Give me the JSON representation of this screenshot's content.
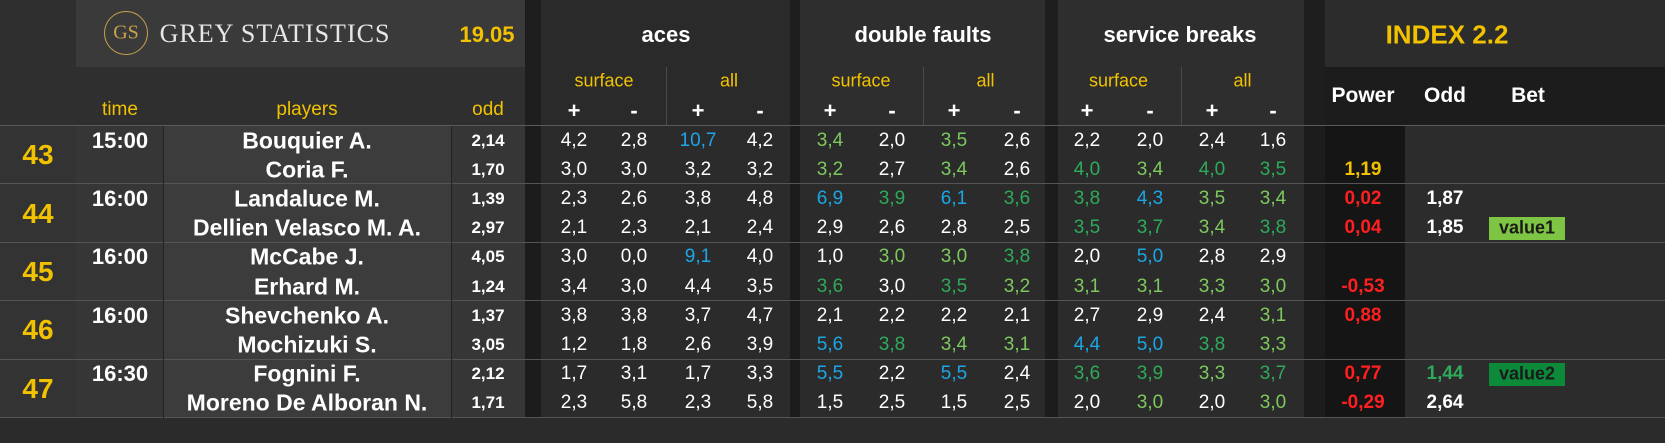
{
  "brand": {
    "logo_text": "GS",
    "title": "GREY STATISTICS",
    "date": "19.05"
  },
  "groups": {
    "aces": "aces",
    "double_faults": "double faults",
    "service_breaks": "service breaks",
    "index": "INDEX 2.2"
  },
  "sub": {
    "surface": "surface",
    "all": "all",
    "plus": "+",
    "minus": "-"
  },
  "cols": {
    "time": "time",
    "players": "players",
    "odd": "odd",
    "power": "Power",
    "odd2": "Odd",
    "bet": "Bet"
  },
  "colors": {
    "yellow": "#f2c200",
    "white": "#ffffff",
    "green": "#7dc95e",
    "dgreen": "#2eaa5a",
    "blue": "#1da6e6",
    "red": "#ff1f1f",
    "value1_bg": "#7dc542",
    "value2_bg": "#0c8a3a"
  },
  "matches": [
    {
      "num": "43",
      "time": "15:00",
      "players": [
        {
          "name": "Bouquier A.",
          "odd": "2,14",
          "stats": [
            [
              "4,2",
              "w"
            ],
            [
              "2,8",
              "w"
            ],
            [
              "10,7",
              "b"
            ],
            [
              "4,2",
              "w"
            ],
            [
              "3,4",
              "g"
            ],
            [
              "2,0",
              "w"
            ],
            [
              "3,5",
              "g"
            ],
            [
              "2,6",
              "w"
            ],
            [
              "2,2",
              "w"
            ],
            [
              "2,0",
              "w"
            ],
            [
              "2,4",
              "w"
            ],
            [
              "1,6",
              "w"
            ]
          ],
          "power": "",
          "power_color": "",
          "odd2": "",
          "odd2_color": "",
          "bet": ""
        },
        {
          "name": "Coria F.",
          "odd": "1,70",
          "stats": [
            [
              "3,0",
              "w"
            ],
            [
              "3,0",
              "w"
            ],
            [
              "3,2",
              "w"
            ],
            [
              "3,2",
              "w"
            ],
            [
              "3,2",
              "g"
            ],
            [
              "2,7",
              "w"
            ],
            [
              "3,4",
              "g"
            ],
            [
              "2,6",
              "w"
            ],
            [
              "4,0",
              "dg"
            ],
            [
              "3,4",
              "g"
            ],
            [
              "4,0",
              "dg"
            ],
            [
              "3,5",
              "dg"
            ]
          ],
          "power": "1,19",
          "power_color": "y",
          "odd2": "",
          "odd2_color": "",
          "bet": ""
        }
      ]
    },
    {
      "num": "44",
      "time": "16:00",
      "players": [
        {
          "name": "Landaluce M.",
          "odd": "1,39",
          "stats": [
            [
              "2,3",
              "w"
            ],
            [
              "2,6",
              "w"
            ],
            [
              "3,8",
              "w"
            ],
            [
              "4,8",
              "w"
            ],
            [
              "6,9",
              "b"
            ],
            [
              "3,9",
              "dg"
            ],
            [
              "6,1",
              "b"
            ],
            [
              "3,6",
              "dg"
            ],
            [
              "3,8",
              "dg"
            ],
            [
              "4,3",
              "b"
            ],
            [
              "3,5",
              "g"
            ],
            [
              "3,4",
              "g"
            ]
          ],
          "power": "0,02",
          "power_color": "r",
          "odd2": "1,87",
          "odd2_color": "w",
          "bet": ""
        },
        {
          "name": "Dellien Velasco M. A.",
          "odd": "2,97",
          "stats": [
            [
              "2,1",
              "w"
            ],
            [
              "2,3",
              "w"
            ],
            [
              "2,1",
              "w"
            ],
            [
              "2,4",
              "w"
            ],
            [
              "2,9",
              "w"
            ],
            [
              "2,6",
              "w"
            ],
            [
              "2,8",
              "w"
            ],
            [
              "2,5",
              "w"
            ],
            [
              "3,5",
              "dg"
            ],
            [
              "3,7",
              "dg"
            ],
            [
              "3,4",
              "g"
            ],
            [
              "3,8",
              "dg"
            ]
          ],
          "power": "0,04",
          "power_color": "r",
          "odd2": "1,85",
          "odd2_color": "w",
          "bet": "value1"
        }
      ]
    },
    {
      "num": "45",
      "time": "16:00",
      "players": [
        {
          "name": "McCabe J.",
          "odd": "4,05",
          "stats": [
            [
              "3,0",
              "w"
            ],
            [
              "0,0",
              "w"
            ],
            [
              "9,1",
              "b"
            ],
            [
              "4,0",
              "w"
            ],
            [
              "1,0",
              "w"
            ],
            [
              "3,0",
              "g"
            ],
            [
              "3,0",
              "g"
            ],
            [
              "3,8",
              "dg"
            ],
            [
              "2,0",
              "w"
            ],
            [
              "5,0",
              "b"
            ],
            [
              "2,8",
              "w"
            ],
            [
              "2,9",
              "w"
            ]
          ],
          "power": "",
          "power_color": "",
          "odd2": "",
          "odd2_color": "",
          "bet": ""
        },
        {
          "name": "Erhard M.",
          "odd": "1,24",
          "stats": [
            [
              "3,4",
              "w"
            ],
            [
              "3,0",
              "w"
            ],
            [
              "4,4",
              "w"
            ],
            [
              "3,5",
              "w"
            ],
            [
              "3,6",
              "dg"
            ],
            [
              "3,0",
              "w"
            ],
            [
              "3,5",
              "dg"
            ],
            [
              "3,2",
              "g"
            ],
            [
              "3,1",
              "g"
            ],
            [
              "3,1",
              "g"
            ],
            [
              "3,3",
              "g"
            ],
            [
              "3,0",
              "g"
            ]
          ],
          "power": "-0,53",
          "power_color": "r",
          "odd2": "",
          "odd2_color": "",
          "bet": ""
        }
      ]
    },
    {
      "num": "46",
      "time": "16:00",
      "players": [
        {
          "name": "Shevchenko A.",
          "odd": "1,37",
          "stats": [
            [
              "3,8",
              "w"
            ],
            [
              "3,8",
              "w"
            ],
            [
              "3,7",
              "w"
            ],
            [
              "4,7",
              "w"
            ],
            [
              "2,1",
              "w"
            ],
            [
              "2,2",
              "w"
            ],
            [
              "2,2",
              "w"
            ],
            [
              "2,1",
              "w"
            ],
            [
              "2,7",
              "w"
            ],
            [
              "2,9",
              "w"
            ],
            [
              "2,4",
              "w"
            ],
            [
              "3,1",
              "g"
            ]
          ],
          "power": "0,88",
          "power_color": "r",
          "odd2": "",
          "odd2_color": "",
          "bet": ""
        },
        {
          "name": "Mochizuki S.",
          "odd": "3,05",
          "stats": [
            [
              "1,2",
              "w"
            ],
            [
              "1,8",
              "w"
            ],
            [
              "2,6",
              "w"
            ],
            [
              "3,9",
              "w"
            ],
            [
              "5,6",
              "b"
            ],
            [
              "3,8",
              "dg"
            ],
            [
              "3,4",
              "g"
            ],
            [
              "3,1",
              "g"
            ],
            [
              "4,4",
              "b"
            ],
            [
              "5,0",
              "b"
            ],
            [
              "3,8",
              "dg"
            ],
            [
              "3,3",
              "g"
            ]
          ],
          "power": "",
          "power_color": "",
          "odd2": "",
          "odd2_color": "",
          "bet": ""
        }
      ]
    },
    {
      "num": "47",
      "time": "16:30",
      "players": [
        {
          "name": "Fognini F.",
          "odd": "2,12",
          "stats": [
            [
              "1,7",
              "w"
            ],
            [
              "3,1",
              "w"
            ],
            [
              "1,7",
              "w"
            ],
            [
              "3,3",
              "w"
            ],
            [
              "5,5",
              "b"
            ],
            [
              "2,2",
              "w"
            ],
            [
              "5,5",
              "b"
            ],
            [
              "2,4",
              "w"
            ],
            [
              "3,6",
              "dg"
            ],
            [
              "3,9",
              "dg"
            ],
            [
              "3,3",
              "g"
            ],
            [
              "3,7",
              "dg"
            ]
          ],
          "power": "0,77",
          "power_color": "r",
          "odd2": "1,44",
          "odd2_color": "dg",
          "bet": "value2"
        },
        {
          "name": "Moreno De Alboran N.",
          "odd": "1,71",
          "stats": [
            [
              "2,3",
              "w"
            ],
            [
              "5,8",
              "w"
            ],
            [
              "2,3",
              "w"
            ],
            [
              "5,8",
              "w"
            ],
            [
              "1,5",
              "w"
            ],
            [
              "2,5",
              "w"
            ],
            [
              "1,5",
              "w"
            ],
            [
              "2,5",
              "w"
            ],
            [
              "2,0",
              "w"
            ],
            [
              "3,0",
              "g"
            ],
            [
              "2,0",
              "w"
            ],
            [
              "3,0",
              "g"
            ]
          ],
          "power": "-0,29",
          "power_color": "r",
          "odd2": "2,64",
          "odd2_color": "w",
          "bet": ""
        }
      ]
    }
  ]
}
